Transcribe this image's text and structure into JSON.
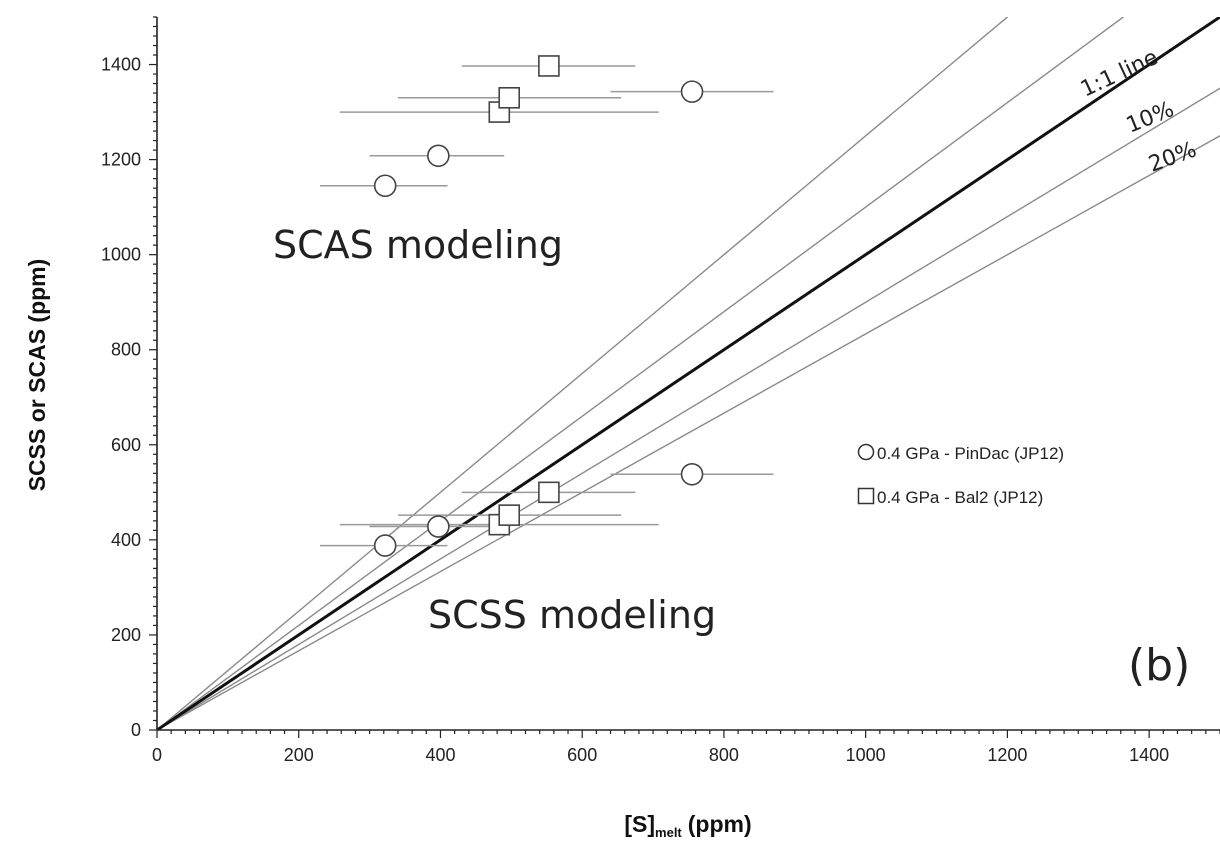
{
  "chart_data": {
    "type": "scatter",
    "xlabel_main": "[S]",
    "xlabel_sub": "melt",
    "xlabel_unit": "(ppm)",
    "ylabel": "SCSS or SCAS (ppm)",
    "xlim": [
      0,
      1500
    ],
    "ylim": [
      0,
      1500
    ],
    "x_ticks": [
      0,
      200,
      400,
      600,
      800,
      1000,
      1200,
      1400
    ],
    "y_ticks": [
      0,
      200,
      400,
      600,
      800,
      1000,
      1200,
      1400
    ],
    "grid": false,
    "reference_lines": [
      {
        "slope": 1.0,
        "label": "1:1 line",
        "style": "bold"
      },
      {
        "slope": 1.1,
        "label": "",
        "style": "thin"
      },
      {
        "slope": 0.9,
        "label": "10%",
        "style": "thin"
      },
      {
        "slope": 1.25,
        "label": "",
        "style": "thin"
      },
      {
        "slope": 0.8333,
        "label": "20%",
        "style": "thin"
      }
    ],
    "series": [
      {
        "name": "0.4 GPa - PinDac (JP12)",
        "marker": "circle",
        "points": [
          {
            "x": 322,
            "y": 1145,
            "xerr_low": 230,
            "xerr_high": 410
          },
          {
            "x": 397,
            "y": 1208,
            "xerr_low": 300,
            "xerr_high": 490
          },
          {
            "x": 755,
            "y": 1343,
            "xerr_low": 640,
            "xerr_high": 870
          },
          {
            "x": 322,
            "y": 388,
            "xerr_low": 230,
            "xerr_high": 410
          },
          {
            "x": 397,
            "y": 428,
            "xerr_low": 300,
            "xerr_high": 490
          },
          {
            "x": 755,
            "y": 538,
            "xerr_low": 640,
            "xerr_high": 870
          }
        ]
      },
      {
        "name": "0.4 GPa - Bal2 (JP12)",
        "marker": "square",
        "points": [
          {
            "x": 483,
            "y": 1300,
            "xerr_low": 258,
            "xerr_high": 708
          },
          {
            "x": 497,
            "y": 1330,
            "xerr_low": 340,
            "xerr_high": 655
          },
          {
            "x": 553,
            "y": 1397,
            "xerr_low": 430,
            "xerr_high": 675
          },
          {
            "x": 483,
            "y": 432,
            "xerr_low": 258,
            "xerr_high": 708
          },
          {
            "x": 497,
            "y": 452,
            "xerr_low": 340,
            "xerr_high": 655
          },
          {
            "x": 553,
            "y": 500,
            "xerr_low": 430,
            "xerr_high": 675
          }
        ]
      }
    ],
    "annotations": {
      "scas": "SCAS modeling",
      "scss": "SCSS modeling",
      "panel": "(b)"
    },
    "legend_position": "center-right"
  }
}
